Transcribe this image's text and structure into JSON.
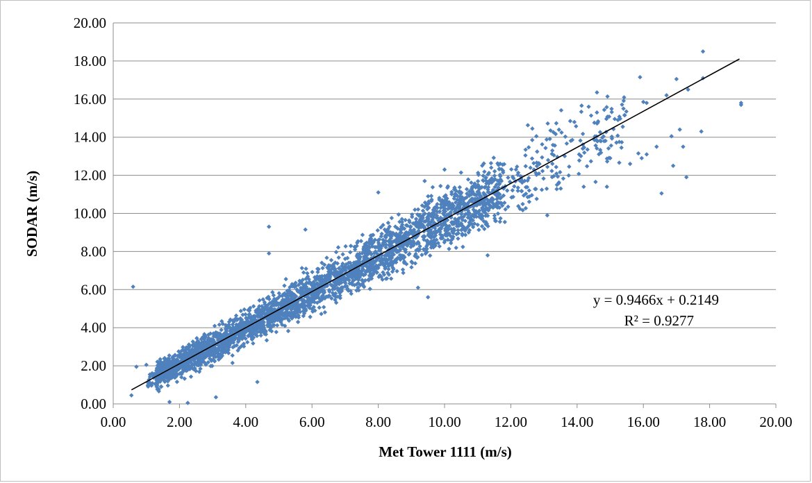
{
  "chart_data": {
    "type": "scatter",
    "title": "",
    "xlabel": "Met Tower 1111 (m/s)",
    "ylabel": "SODAR (m/s)",
    "xlim": [
      0,
      20
    ],
    "ylim": [
      0,
      20
    ],
    "x_ticks": [
      "0.00",
      "2.00",
      "4.00",
      "6.00",
      "8.00",
      "10.00",
      "12.00",
      "14.00",
      "16.00",
      "18.00",
      "20.00"
    ],
    "y_ticks": [
      "0.00",
      "2.00",
      "4.00",
      "6.00",
      "8.00",
      "10.00",
      "12.00",
      "14.00",
      "16.00",
      "18.00",
      "20.00"
    ],
    "grid": "horizontal",
    "legend": "none",
    "marker_color": "#4f81bd",
    "trendline": {
      "slope": 0.9466,
      "intercept": 0.2149,
      "x_range": [
        0.55,
        18.9
      ],
      "color": "#000000",
      "equation_label": "y = 0.9466x + 0.2149",
      "r2_label": "R² = 0.9277"
    },
    "series": [
      {
        "points": [
          [
            0.6,
            6.15
          ],
          [
            0.55,
            0.45
          ],
          [
            0.7,
            1.95
          ],
          [
            1.0,
            2.05
          ],
          [
            1.7,
            0.1
          ],
          [
            2.25,
            0.05
          ],
          [
            3.1,
            0.35
          ],
          [
            3.6,
            2.15
          ],
          [
            4.35,
            1.15
          ],
          [
            4.7,
            9.3
          ],
          [
            4.7,
            7.9
          ],
          [
            5.8,
            9.15
          ],
          [
            9.2,
            6.1
          ],
          [
            9.5,
            5.6
          ],
          [
            8.0,
            11.1
          ],
          [
            9.4,
            11.7
          ],
          [
            10.0,
            12.3
          ],
          [
            11.3,
            7.8
          ],
          [
            12.65,
            14.45
          ],
          [
            13.1,
            9.9
          ],
          [
            14.2,
            11.4
          ],
          [
            14.35,
            15.6
          ],
          [
            14.9,
            11.4
          ],
          [
            15.0,
            12.9
          ],
          [
            14.6,
            16.35
          ],
          [
            15.6,
            12.6
          ],
          [
            15.95,
            12.9
          ],
          [
            16.1,
            13.1
          ],
          [
            15.9,
            17.15
          ],
          [
            16.1,
            15.8
          ],
          [
            16.7,
            16.2
          ],
          [
            17.0,
            17.05
          ],
          [
            17.35,
            16.5
          ],
          [
            17.1,
            14.4
          ],
          [
            17.75,
            14.3
          ],
          [
            17.8,
            17.1
          ],
          [
            17.8,
            18.5
          ],
          [
            16.85,
            14.05
          ],
          [
            17.3,
            11.9
          ],
          [
            16.9,
            12.5
          ],
          [
            16.4,
            13.5
          ],
          [
            17.2,
            13.5
          ],
          [
            16.0,
            15.85
          ],
          [
            15.4,
            15.5
          ],
          [
            18.95,
            15.7
          ],
          [
            18.95,
            15.8
          ],
          [
            16.55,
            11.05
          ],
          [
            15.85,
            13.15
          ]
        ]
      }
    ]
  }
}
